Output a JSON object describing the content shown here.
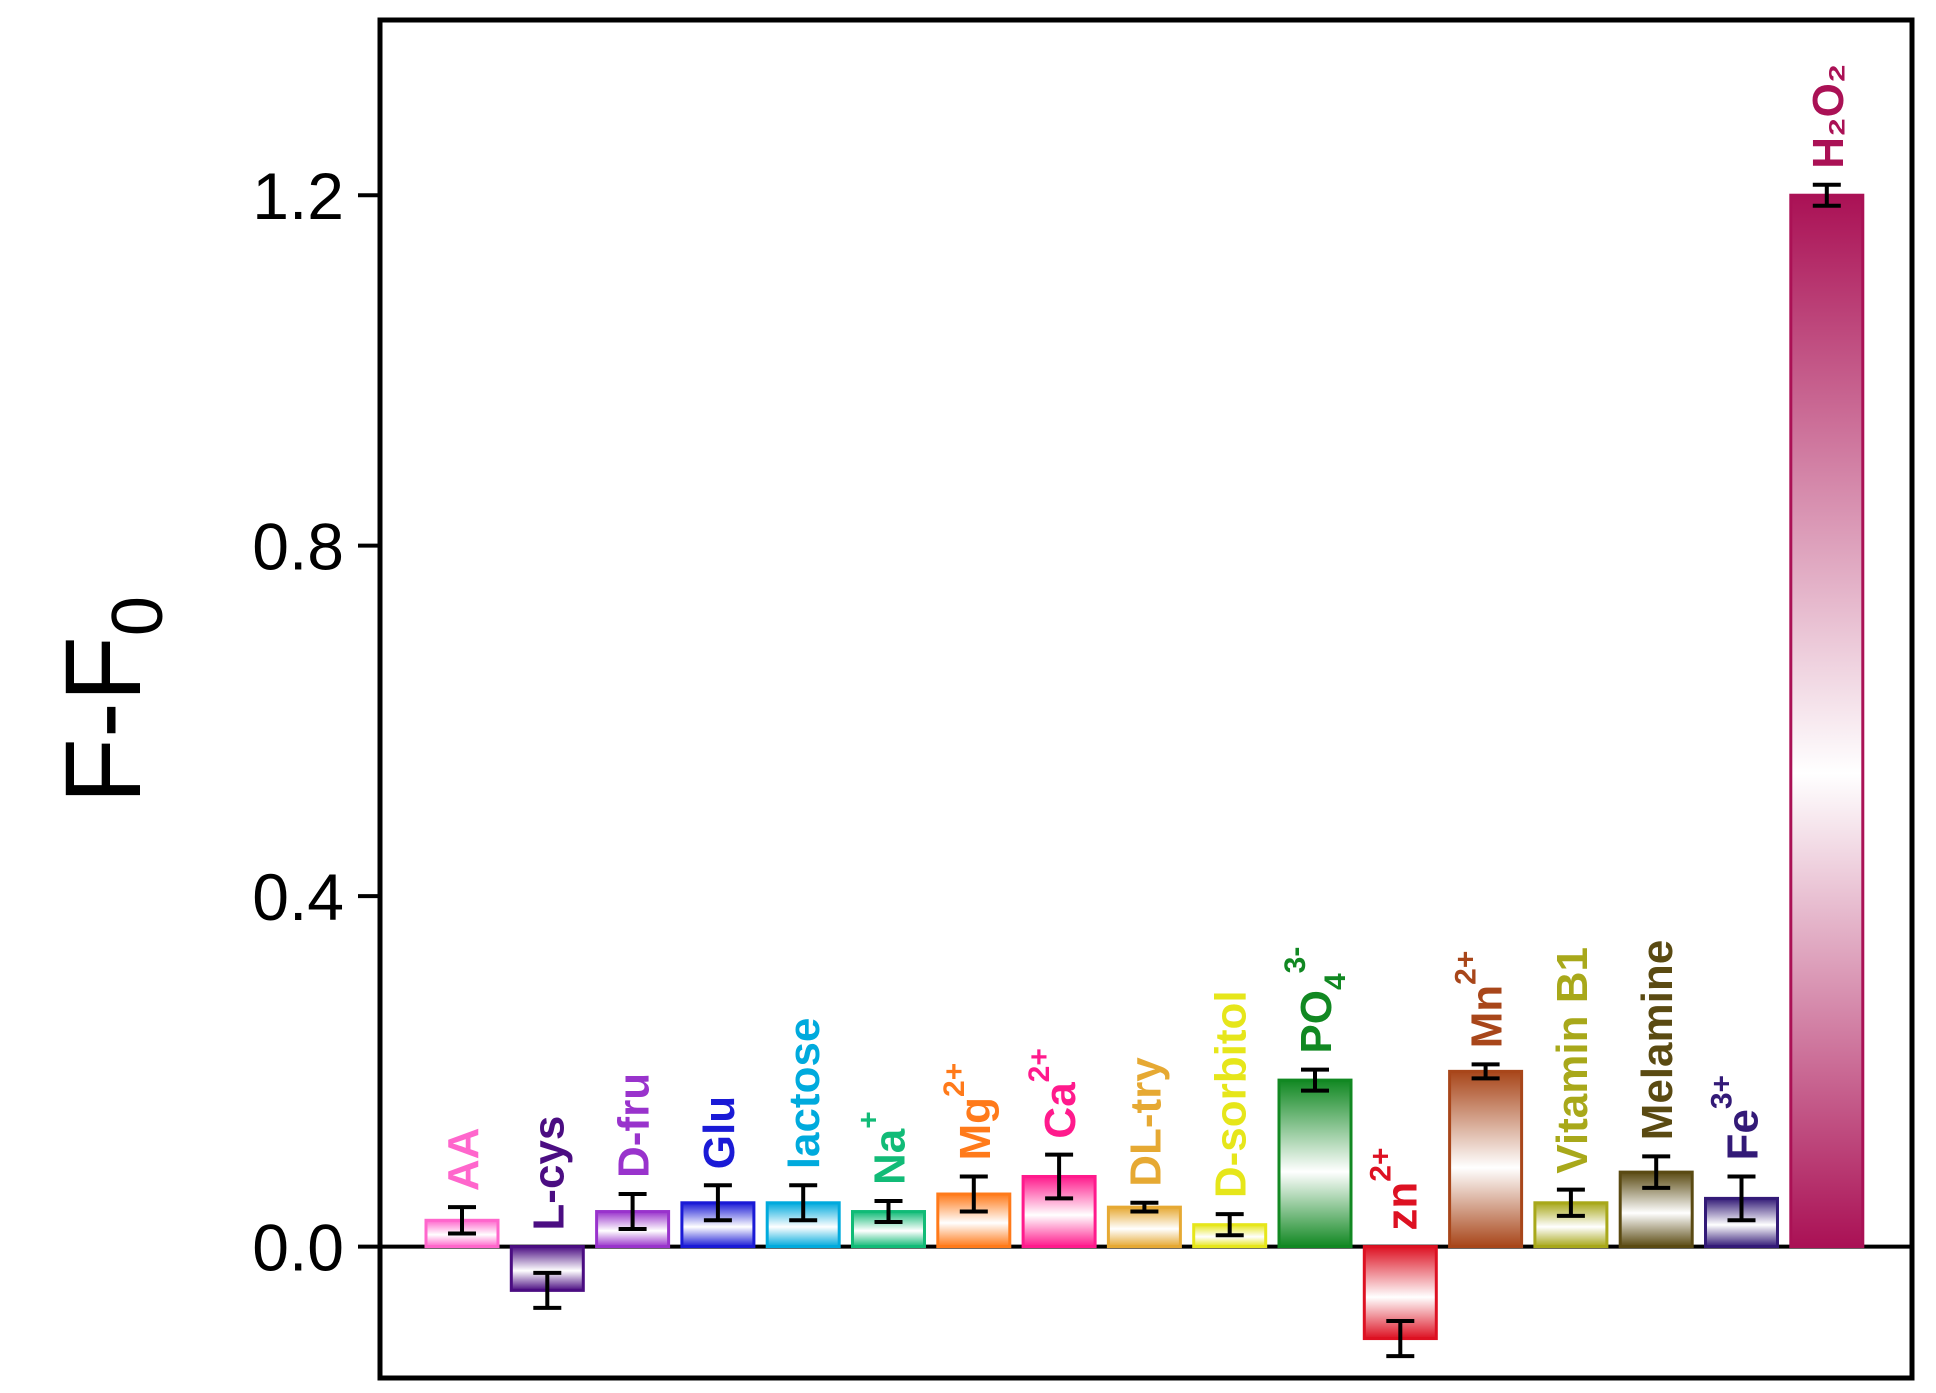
{
  "chart_data": {
    "type": "bar",
    "ylabel": "F-F",
    "ylabel_subscript": "0",
    "ylim": [
      -0.15,
      1.4
    ],
    "yticks": [
      0.0,
      0.4,
      0.8,
      1.2
    ],
    "ytick_labels": [
      "0.0",
      "0.4",
      "0.8",
      "1.2"
    ],
    "grid": false,
    "categories": [
      {
        "base": "AA",
        "sub": "",
        "sup": "",
        "color": "#ff66cc"
      },
      {
        "base": "L-cys",
        "sub": "",
        "sup": "",
        "color": "#4b0d82"
      },
      {
        "base": "D-fru",
        "sub": "",
        "sup": "",
        "color": "#9933cc"
      },
      {
        "base": "Glu",
        "sub": "",
        "sup": "",
        "color": "#1a1ad6"
      },
      {
        "base": "lactose",
        "sub": "",
        "sup": "",
        "color": "#00aadd"
      },
      {
        "base": "Na",
        "sub": "",
        "sup": "+",
        "color": "#11bb77"
      },
      {
        "base": "Mg",
        "sub": "",
        "sup": "2+",
        "color": "#ff7a1a"
      },
      {
        "base": "Ca",
        "sub": "",
        "sup": "2+",
        "color": "#ff1a8c"
      },
      {
        "base": "DL-try",
        "sub": "",
        "sup": "",
        "color": "#e6a933"
      },
      {
        "base": "D-sorbitol",
        "sub": "",
        "sup": "",
        "color": "#e6e61a"
      },
      {
        "base": "PO",
        "sub": "4",
        "sup": "3-",
        "color": "#118822"
      },
      {
        "base": "zn",
        "sub": "",
        "sup": "2+",
        "color": "#dd1122"
      },
      {
        "base": "Mn",
        "sub": "",
        "sup": "2+",
        "color": "#a8461a"
      },
      {
        "base": "Vitamin B1",
        "sub": "",
        "sup": "",
        "color": "#a8a81a"
      },
      {
        "base": "Melamine",
        "sub": "",
        "sup": "",
        "color": "#5a4a12"
      },
      {
        "base": "Fe",
        "sub": "",
        "sup": "3+",
        "color": "#331a77"
      },
      {
        "base": "H₂O₂",
        "sub": "",
        "sup": "",
        "color": "#aa1155"
      }
    ],
    "series": [
      {
        "values": [
          0.03,
          -0.05,
          0.04,
          0.05,
          0.05,
          0.04,
          0.06,
          0.08,
          0.045,
          0.025,
          0.19,
          -0.105,
          0.2,
          0.05,
          0.085,
          0.055,
          1.2
        ],
        "errors": [
          0.015,
          0.02,
          0.02,
          0.02,
          0.02,
          0.012,
          0.02,
          0.025,
          0.005,
          0.012,
          0.012,
          0.02,
          0.008,
          0.015,
          0.018,
          0.025,
          0.012
        ]
      }
    ]
  }
}
